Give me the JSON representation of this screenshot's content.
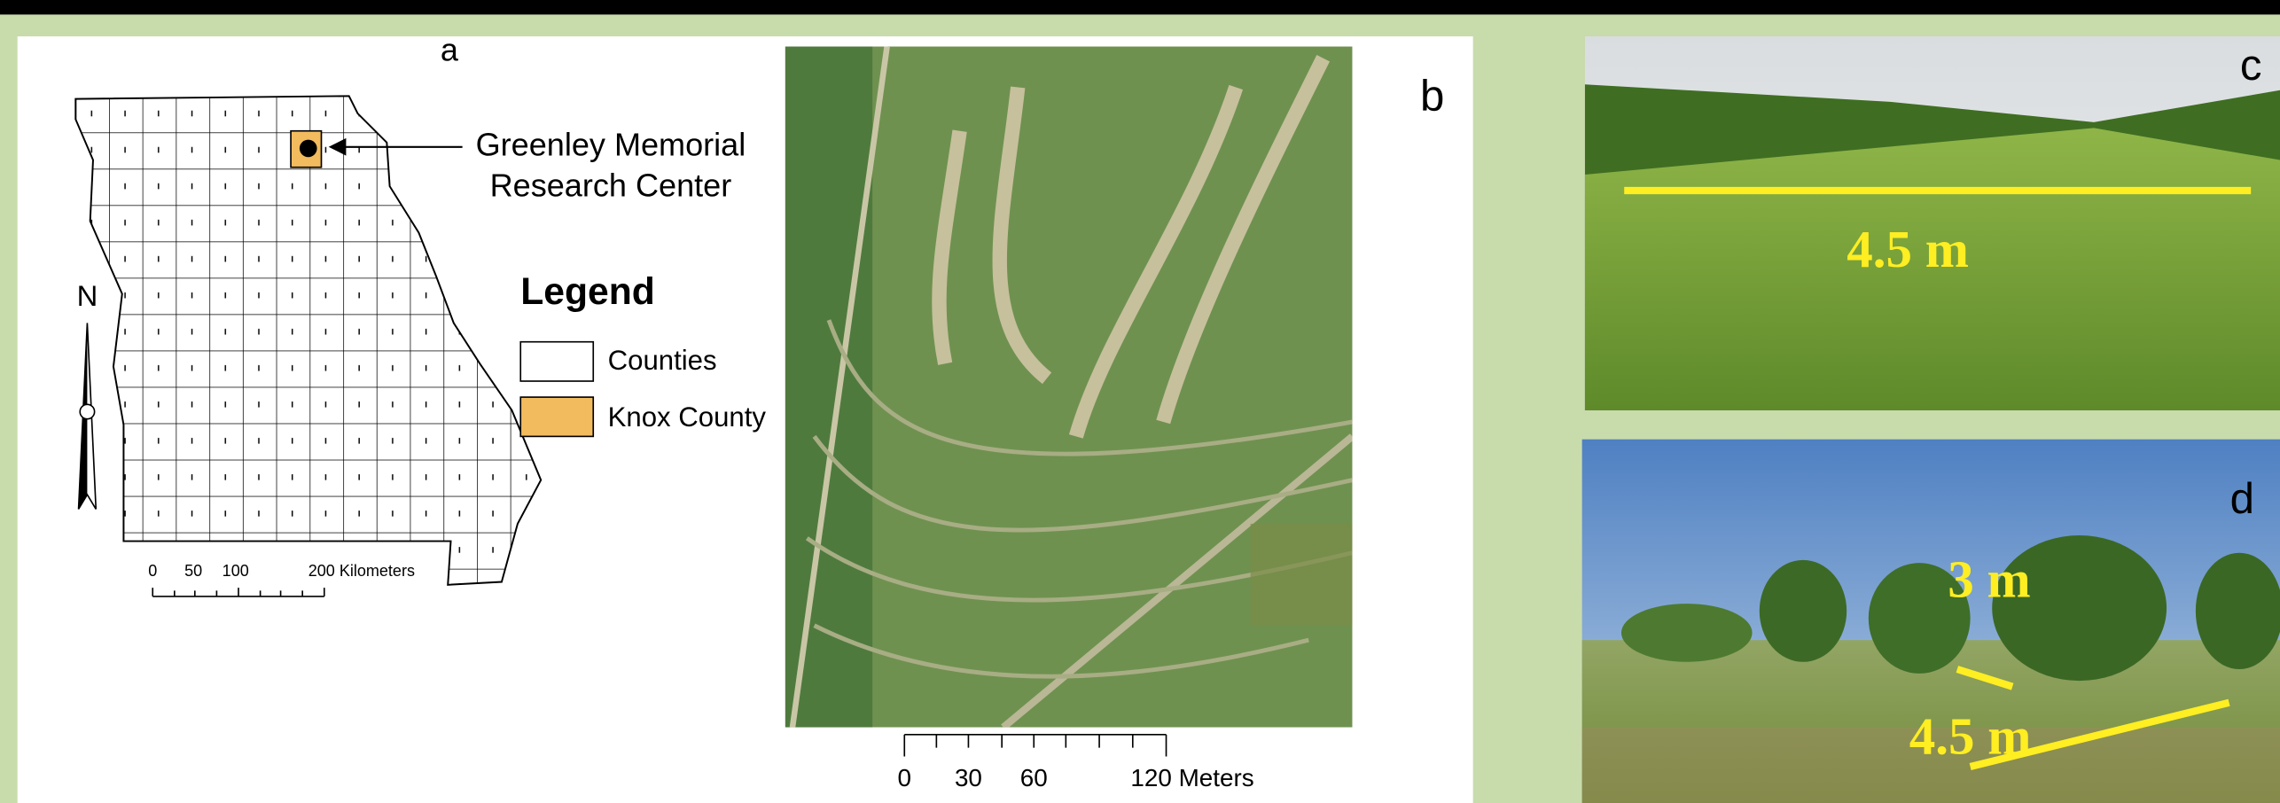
{
  "panels": {
    "a": {
      "label": "a",
      "callout": [
        "Greenley Memorial",
        "Research Center"
      ],
      "north": "N",
      "legend": {
        "title": "Legend",
        "items": [
          "Counties",
          "Knox County"
        ]
      },
      "scale": [
        "0",
        "50",
        "100",
        "200 Kilometers"
      ]
    },
    "b": {
      "label": "b",
      "scale": [
        "0",
        "30",
        "60",
        "120 Meters"
      ]
    },
    "c": {
      "label": "c",
      "annotation": "4.5 m"
    },
    "d": {
      "label": "d",
      "annotations": [
        "3 m",
        "4.5 m"
      ]
    }
  }
}
